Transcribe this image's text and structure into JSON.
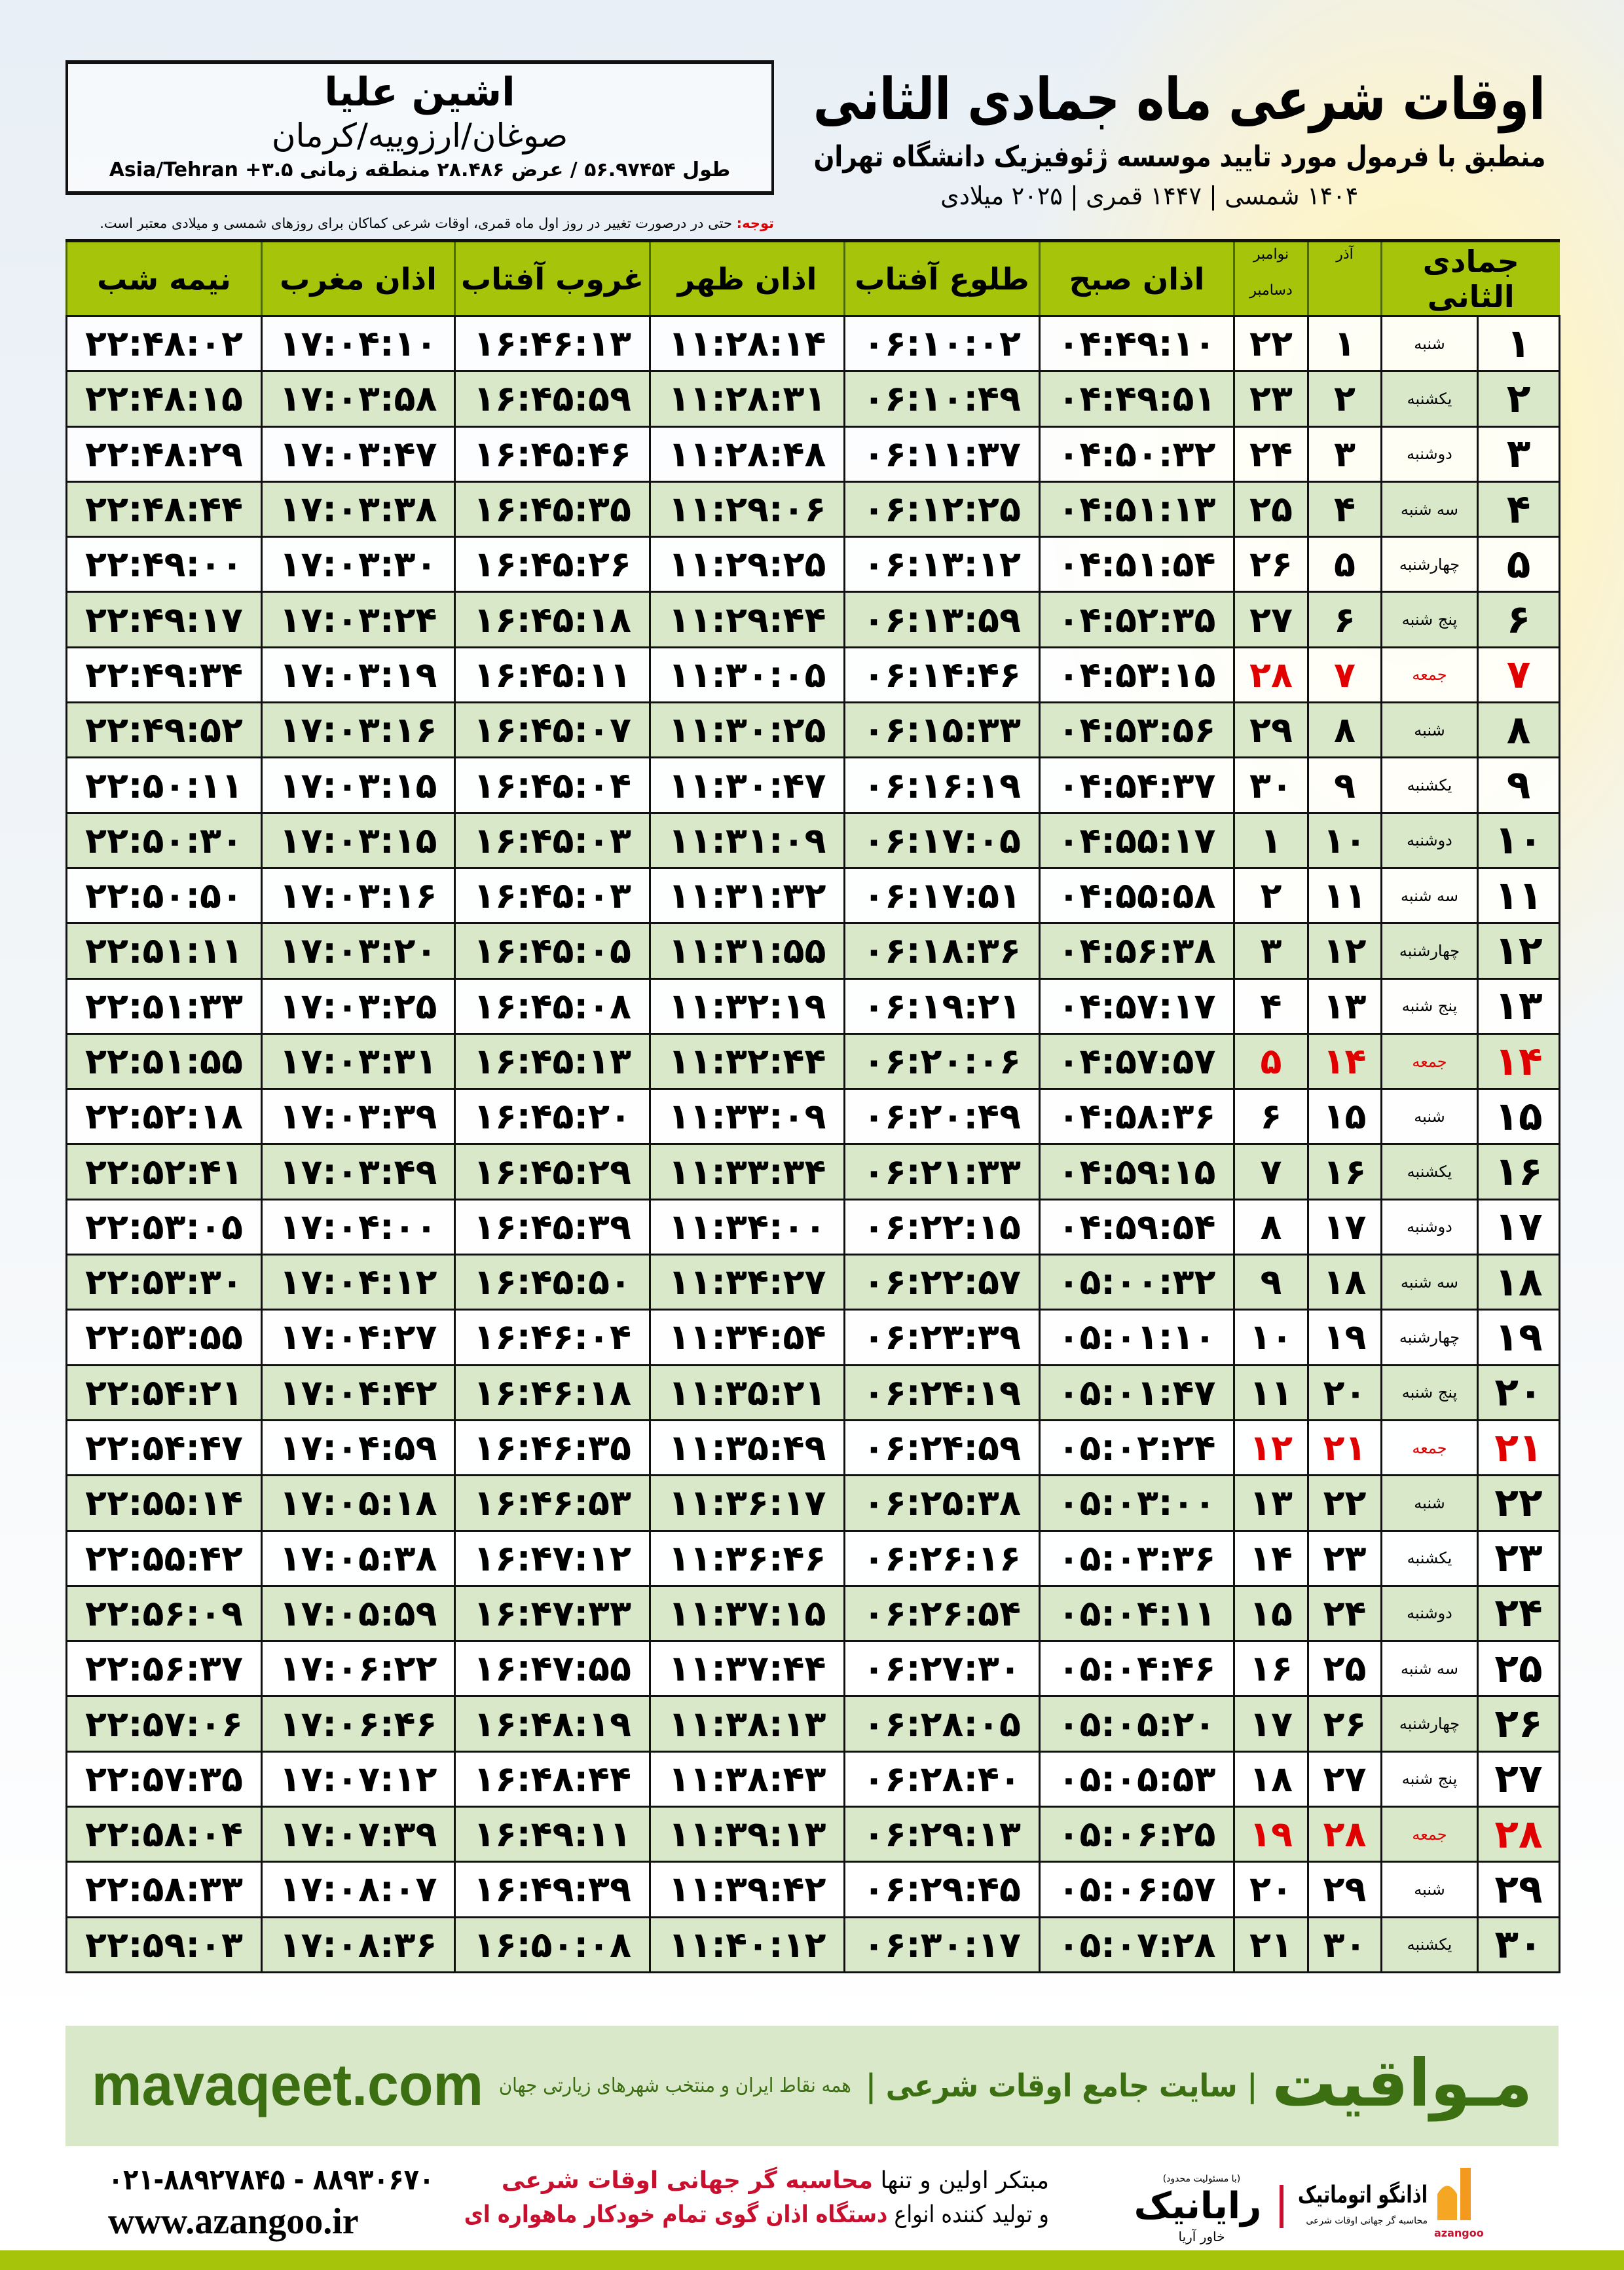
{
  "header": {
    "title": "اوقات شرعی ماه جمادی الثانی",
    "subtitle": "منطبق با فرمول مورد تایید موسسه ژئوفیزیک دانشگاه تهران",
    "dates": "۱۴۰۴ شمسی | ۱۴۴۷ قمری | ۲۰۲۵ میلادی"
  },
  "location": {
    "name": "اشین علیا",
    "region": "صوغان/ارزوییه/کرمان",
    "coords": "طول ۵۶.۹۷۴۵۴ / عرض ۲۸.۴۸۶ منطقه زمانی ۳.۵+ Asia/Tehran"
  },
  "note": {
    "label": "توجه:",
    "text": " حتی در درصورت تغییر در روز اول ماه قمری، اوقات شرعی کماکان برای روزهای شمسی و میلادی معتبر است."
  },
  "table": {
    "headers": {
      "hijri": "جمادی الثانی",
      "azar": "آذر",
      "greg_top": "نوامبر",
      "greg_bottom": "دسامبر",
      "fajr": "اذان صبح",
      "sunrise": "طلوع آفتاب",
      "dhuhr": "اذان ظهر",
      "sunset": "غروب آفتاب",
      "maghrib": "اذان مغرب",
      "midnight": "نیمه شب"
    },
    "holiday_color": "#e00000",
    "rows": [
      {
        "day": "۱",
        "weekday": "شنبه",
        "azar": "۱",
        "greg": "۲۲",
        "fajr": "۰۴:۴۹:۱۰",
        "sunrise": "۰۶:۱۰:۰۲",
        "dhuhr": "۱۱:۲۸:۱۴",
        "sunset": "۱۶:۴۶:۱۳",
        "maghrib": "۱۷:۰۴:۱۰",
        "midnight": "۲۲:۴۸:۰۲"
      },
      {
        "day": "۲",
        "weekday": "یکشنبه",
        "azar": "۲",
        "greg": "۲۳",
        "fajr": "۰۴:۴۹:۵۱",
        "sunrise": "۰۶:۱۰:۴۹",
        "dhuhr": "۱۱:۲۸:۳۱",
        "sunset": "۱۶:۴۵:۵۹",
        "maghrib": "۱۷:۰۳:۵۸",
        "midnight": "۲۲:۴۸:۱۵"
      },
      {
        "day": "۳",
        "weekday": "دوشنبه",
        "azar": "۳",
        "greg": "۲۴",
        "fajr": "۰۴:۵۰:۳۲",
        "sunrise": "۰۶:۱۱:۳۷",
        "dhuhr": "۱۱:۲۸:۴۸",
        "sunset": "۱۶:۴۵:۴۶",
        "maghrib": "۱۷:۰۳:۴۷",
        "midnight": "۲۲:۴۸:۲۹"
      },
      {
        "day": "۴",
        "weekday": "سه شنبه",
        "azar": "۴",
        "greg": "۲۵",
        "fajr": "۰۴:۵۱:۱۳",
        "sunrise": "۰۶:۱۲:۲۵",
        "dhuhr": "۱۱:۲۹:۰۶",
        "sunset": "۱۶:۴۵:۳۵",
        "maghrib": "۱۷:۰۳:۳۸",
        "midnight": "۲۲:۴۸:۴۴"
      },
      {
        "day": "۵",
        "weekday": "چهارشنبه",
        "azar": "۵",
        "greg": "۲۶",
        "fajr": "۰۴:۵۱:۵۴",
        "sunrise": "۰۶:۱۳:۱۲",
        "dhuhr": "۱۱:۲۹:۲۵",
        "sunset": "۱۶:۴۵:۲۶",
        "maghrib": "۱۷:۰۳:۳۰",
        "midnight": "۲۲:۴۹:۰۰"
      },
      {
        "day": "۶",
        "weekday": "پنج شنبه",
        "azar": "۶",
        "greg": "۲۷",
        "fajr": "۰۴:۵۲:۳۵",
        "sunrise": "۰۶:۱۳:۵۹",
        "dhuhr": "۱۱:۲۹:۴۴",
        "sunset": "۱۶:۴۵:۱۸",
        "maghrib": "۱۷:۰۳:۲۴",
        "midnight": "۲۲:۴۹:۱۷"
      },
      {
        "day": "۷",
        "weekday": "جمعه",
        "azar": "۷",
        "greg": "۲۸",
        "fajr": "۰۴:۵۳:۱۵",
        "sunrise": "۰۶:۱۴:۴۶",
        "dhuhr": "۱۱:۳۰:۰۵",
        "sunset": "۱۶:۴۵:۱۱",
        "maghrib": "۱۷:۰۳:۱۹",
        "midnight": "۲۲:۴۹:۳۴",
        "holiday": true
      },
      {
        "day": "۸",
        "weekday": "شنبه",
        "azar": "۸",
        "greg": "۲۹",
        "fajr": "۰۴:۵۳:۵۶",
        "sunrise": "۰۶:۱۵:۳۳",
        "dhuhr": "۱۱:۳۰:۲۵",
        "sunset": "۱۶:۴۵:۰۷",
        "maghrib": "۱۷:۰۳:۱۶",
        "midnight": "۲۲:۴۹:۵۲"
      },
      {
        "day": "۹",
        "weekday": "یکشنبه",
        "azar": "۹",
        "greg": "۳۰",
        "fajr": "۰۴:۵۴:۳۷",
        "sunrise": "۰۶:۱۶:۱۹",
        "dhuhr": "۱۱:۳۰:۴۷",
        "sunset": "۱۶:۴۵:۰۴",
        "maghrib": "۱۷:۰۳:۱۵",
        "midnight": "۲۲:۵۰:۱۱"
      },
      {
        "day": "۱۰",
        "weekday": "دوشنبه",
        "azar": "۱۰",
        "greg": "۱",
        "fajr": "۰۴:۵۵:۱۷",
        "sunrise": "۰۶:۱۷:۰۵",
        "dhuhr": "۱۱:۳۱:۰۹",
        "sunset": "۱۶:۴۵:۰۳",
        "maghrib": "۱۷:۰۳:۱۵",
        "midnight": "۲۲:۵۰:۳۰"
      },
      {
        "day": "۱۱",
        "weekday": "سه شنبه",
        "azar": "۱۱",
        "greg": "۲",
        "fajr": "۰۴:۵۵:۵۸",
        "sunrise": "۰۶:۱۷:۵۱",
        "dhuhr": "۱۱:۳۱:۳۲",
        "sunset": "۱۶:۴۵:۰۳",
        "maghrib": "۱۷:۰۳:۱۶",
        "midnight": "۲۲:۵۰:۵۰"
      },
      {
        "day": "۱۲",
        "weekday": "چهارشنبه",
        "azar": "۱۲",
        "greg": "۳",
        "fajr": "۰۴:۵۶:۳۸",
        "sunrise": "۰۶:۱۸:۳۶",
        "dhuhr": "۱۱:۳۱:۵۵",
        "sunset": "۱۶:۴۵:۰۵",
        "maghrib": "۱۷:۰۳:۲۰",
        "midnight": "۲۲:۵۱:۱۱"
      },
      {
        "day": "۱۳",
        "weekday": "پنج شنبه",
        "azar": "۱۳",
        "greg": "۴",
        "fajr": "۰۴:۵۷:۱۷",
        "sunrise": "۰۶:۱۹:۲۱",
        "dhuhr": "۱۱:۳۲:۱۹",
        "sunset": "۱۶:۴۵:۰۸",
        "maghrib": "۱۷:۰۳:۲۵",
        "midnight": "۲۲:۵۱:۳۳"
      },
      {
        "day": "۱۴",
        "weekday": "جمعه",
        "azar": "۱۴",
        "greg": "۵",
        "fajr": "۰۴:۵۷:۵۷",
        "sunrise": "۰۶:۲۰:۰۶",
        "dhuhr": "۱۱:۳۲:۴۴",
        "sunset": "۱۶:۴۵:۱۳",
        "maghrib": "۱۷:۰۳:۳۱",
        "midnight": "۲۲:۵۱:۵۵",
        "holiday": true
      },
      {
        "day": "۱۵",
        "weekday": "شنبه",
        "azar": "۱۵",
        "greg": "۶",
        "fajr": "۰۴:۵۸:۳۶",
        "sunrise": "۰۶:۲۰:۴۹",
        "dhuhr": "۱۱:۳۳:۰۹",
        "sunset": "۱۶:۴۵:۲۰",
        "maghrib": "۱۷:۰۳:۳۹",
        "midnight": "۲۲:۵۲:۱۸"
      },
      {
        "day": "۱۶",
        "weekday": "یکشنبه",
        "azar": "۱۶",
        "greg": "۷",
        "fajr": "۰۴:۵۹:۱۵",
        "sunrise": "۰۶:۲۱:۳۳",
        "dhuhr": "۱۱:۳۳:۳۴",
        "sunset": "۱۶:۴۵:۲۹",
        "maghrib": "۱۷:۰۳:۴۹",
        "midnight": "۲۲:۵۲:۴۱"
      },
      {
        "day": "۱۷",
        "weekday": "دوشنبه",
        "azar": "۱۷",
        "greg": "۸",
        "fajr": "۰۴:۵۹:۵۴",
        "sunrise": "۰۶:۲۲:۱۵",
        "dhuhr": "۱۱:۳۴:۰۰",
        "sunset": "۱۶:۴۵:۳۹",
        "maghrib": "۱۷:۰۴:۰۰",
        "midnight": "۲۲:۵۳:۰۵"
      },
      {
        "day": "۱۸",
        "weekday": "سه شنبه",
        "azar": "۱۸",
        "greg": "۹",
        "fajr": "۰۵:۰۰:۳۲",
        "sunrise": "۰۶:۲۲:۵۷",
        "dhuhr": "۱۱:۳۴:۲۷",
        "sunset": "۱۶:۴۵:۵۰",
        "maghrib": "۱۷:۰۴:۱۲",
        "midnight": "۲۲:۵۳:۳۰"
      },
      {
        "day": "۱۹",
        "weekday": "چهارشنبه",
        "azar": "۱۹",
        "greg": "۱۰",
        "fajr": "۰۵:۰۱:۱۰",
        "sunrise": "۰۶:۲۳:۳۹",
        "dhuhr": "۱۱:۳۴:۵۴",
        "sunset": "۱۶:۴۶:۰۴",
        "maghrib": "۱۷:۰۴:۲۷",
        "midnight": "۲۲:۵۳:۵۵"
      },
      {
        "day": "۲۰",
        "weekday": "پنج شنبه",
        "azar": "۲۰",
        "greg": "۱۱",
        "fajr": "۰۵:۰۱:۴۷",
        "sunrise": "۰۶:۲۴:۱۹",
        "dhuhr": "۱۱:۳۵:۲۱",
        "sunset": "۱۶:۴۶:۱۸",
        "maghrib": "۱۷:۰۴:۴۲",
        "midnight": "۲۲:۵۴:۲۱"
      },
      {
        "day": "۲۱",
        "weekday": "جمعه",
        "azar": "۲۱",
        "greg": "۱۲",
        "fajr": "۰۵:۰۲:۲۴",
        "sunrise": "۰۶:۲۴:۵۹",
        "dhuhr": "۱۱:۳۵:۴۹",
        "sunset": "۱۶:۴۶:۳۵",
        "maghrib": "۱۷:۰۴:۵۹",
        "midnight": "۲۲:۵۴:۴۷",
        "holiday": true
      },
      {
        "day": "۲۲",
        "weekday": "شنبه",
        "azar": "۲۲",
        "greg": "۱۳",
        "fajr": "۰۵:۰۳:۰۰",
        "sunrise": "۰۶:۲۵:۳۸",
        "dhuhr": "۱۱:۳۶:۱۷",
        "sunset": "۱۶:۴۶:۵۳",
        "maghrib": "۱۷:۰۵:۱۸",
        "midnight": "۲۲:۵۵:۱۴"
      },
      {
        "day": "۲۳",
        "weekday": "یکشنبه",
        "azar": "۲۳",
        "greg": "۱۴",
        "fajr": "۰۵:۰۳:۳۶",
        "sunrise": "۰۶:۲۶:۱۶",
        "dhuhr": "۱۱:۳۶:۴۶",
        "sunset": "۱۶:۴۷:۱۲",
        "maghrib": "۱۷:۰۵:۳۸",
        "midnight": "۲۲:۵۵:۴۲"
      },
      {
        "day": "۲۴",
        "weekday": "دوشنبه",
        "azar": "۲۴",
        "greg": "۱۵",
        "fajr": "۰۵:۰۴:۱۱",
        "sunrise": "۰۶:۲۶:۵۴",
        "dhuhr": "۱۱:۳۷:۱۵",
        "sunset": "۱۶:۴۷:۳۳",
        "maghrib": "۱۷:۰۵:۵۹",
        "midnight": "۲۲:۵۶:۰۹"
      },
      {
        "day": "۲۵",
        "weekday": "سه شنبه",
        "azar": "۲۵",
        "greg": "۱۶",
        "fajr": "۰۵:۰۴:۴۶",
        "sunrise": "۰۶:۲۷:۳۰",
        "dhuhr": "۱۱:۳۷:۴۴",
        "sunset": "۱۶:۴۷:۵۵",
        "maghrib": "۱۷:۰۶:۲۲",
        "midnight": "۲۲:۵۶:۳۷"
      },
      {
        "day": "۲۶",
        "weekday": "چهارشنبه",
        "azar": "۲۶",
        "greg": "۱۷",
        "fajr": "۰۵:۰۵:۲۰",
        "sunrise": "۰۶:۲۸:۰۵",
        "dhuhr": "۱۱:۳۸:۱۳",
        "sunset": "۱۶:۴۸:۱۹",
        "maghrib": "۱۷:۰۶:۴۶",
        "midnight": "۲۲:۵۷:۰۶"
      },
      {
        "day": "۲۷",
        "weekday": "پنج شنبه",
        "azar": "۲۷",
        "greg": "۱۸",
        "fajr": "۰۵:۰۵:۵۳",
        "sunrise": "۰۶:۲۸:۴۰",
        "dhuhr": "۱۱:۳۸:۴۳",
        "sunset": "۱۶:۴۸:۴۴",
        "maghrib": "۱۷:۰۷:۱۲",
        "midnight": "۲۲:۵۷:۳۵"
      },
      {
        "day": "۲۸",
        "weekday": "جمعه",
        "azar": "۲۸",
        "greg": "۱۹",
        "fajr": "۰۵:۰۶:۲۵",
        "sunrise": "۰۶:۲۹:۱۳",
        "dhuhr": "۱۱:۳۹:۱۳",
        "sunset": "۱۶:۴۹:۱۱",
        "maghrib": "۱۷:۰۷:۳۹",
        "midnight": "۲۲:۵۸:۰۴",
        "holiday": true
      },
      {
        "day": "۲۹",
        "weekday": "شنبه",
        "azar": "۲۹",
        "greg": "۲۰",
        "fajr": "۰۵:۰۶:۵۷",
        "sunrise": "۰۶:۲۹:۴۵",
        "dhuhr": "۱۱:۳۹:۴۲",
        "sunset": "۱۶:۴۹:۳۹",
        "maghrib": "۱۷:۰۸:۰۷",
        "midnight": "۲۲:۵۸:۳۳"
      },
      {
        "day": "۳۰",
        "weekday": "یکشنبه",
        "azar": "۳۰",
        "greg": "۲۱",
        "fajr": "۰۵:۰۷:۲۸",
        "sunrise": "۰۶:۳۰:۱۷",
        "dhuhr": "۱۱:۴۰:۱۲",
        "sunset": "۱۶:۵۰:۰۸",
        "maghrib": "۱۷:۰۸:۳۶",
        "midnight": "۲۲:۵۹:۰۳"
      }
    ]
  },
  "footer": {
    "brand": "مـواقیت",
    "brand_tagline": "| سایت جامع اوقات شرعی |",
    "brand_sub": "همه نقاط ایران و منتخب شهرهای زیارتی جهان",
    "url": "mavaqeet.com",
    "phone": "۰۲۱-۸۸۹۲۷۸۴۵ - ۸۸۹۳۰۶۷۰",
    "website": "www.azangoo.ir",
    "slogan_1a": "مبتکر اولین و تنها ",
    "slogan_1b": "محاسبه گر جهانی اوقات شرعی",
    "slogan_2a": "و تولید کننده انواع ",
    "slogan_2b": "دستگاه اذان گوی تمام خودکار ماهواره ای",
    "rayanik_small": "(با مسئولیت محدود)",
    "rayanik": "رایانیک",
    "rayanik_sub": "خاور آریا",
    "azangoo_name": "اذانگو اتوماتیک",
    "azangoo_sub": "محاسبه گر جهانی اوقات شرعی",
    "azangoo_latin": "azangoo",
    "brand_green": "#3c6e12",
    "accent_green": "#a6c40a"
  }
}
